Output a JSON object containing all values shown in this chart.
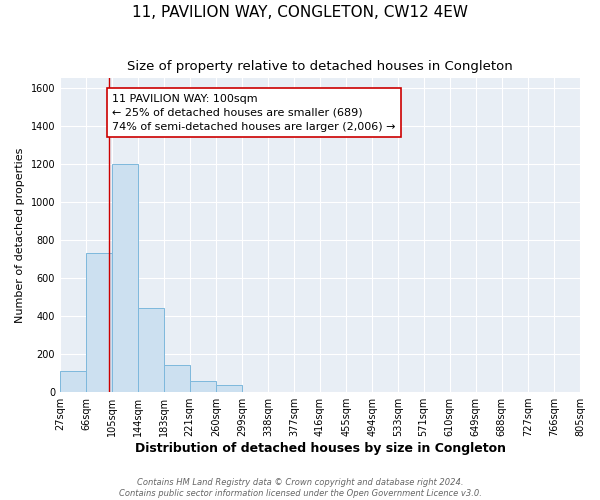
{
  "title": "11, PAVILION WAY, CONGLETON, CW12 4EW",
  "subtitle": "Size of property relative to detached houses in Congleton",
  "xlabel": "Distribution of detached houses by size in Congleton",
  "ylabel": "Number of detached properties",
  "bin_edges": [
    27,
    66,
    105,
    144,
    183,
    221,
    260,
    299,
    338,
    377,
    416,
    455,
    494,
    533,
    571,
    610,
    649,
    688,
    727,
    766,
    805
  ],
  "bin_heights": [
    110,
    730,
    1200,
    440,
    145,
    60,
    35,
    0,
    0,
    0,
    0,
    0,
    0,
    0,
    0,
    0,
    0,
    0,
    0,
    0
  ],
  "bar_color": "#cce0f0",
  "bar_edge_color": "#7db8dc",
  "property_line_x": 100,
  "property_line_color": "#cc0000",
  "annotation_line1": "11 PAVILION WAY: 100sqm",
  "annotation_line2": "← 25% of detached houses are smaller (689)",
  "annotation_line3": "74% of semi-detached houses are larger (2,006) →",
  "annotation_box_color": "#ffffff",
  "annotation_box_edge_color": "#cc0000",
  "ylim": [
    0,
    1650
  ],
  "yticks": [
    0,
    200,
    400,
    600,
    800,
    1000,
    1200,
    1400,
    1600
  ],
  "tick_labels": [
    "27sqm",
    "66sqm",
    "105sqm",
    "144sqm",
    "183sqm",
    "221sqm",
    "260sqm",
    "299sqm",
    "338sqm",
    "377sqm",
    "416sqm",
    "455sqm",
    "494sqm",
    "533sqm",
    "571sqm",
    "610sqm",
    "649sqm",
    "688sqm",
    "727sqm",
    "766sqm",
    "805sqm"
  ],
  "footer_text": "Contains HM Land Registry data © Crown copyright and database right 2024.\nContains public sector information licensed under the Open Government Licence v3.0.",
  "background_color": "#e8eef5",
  "grid_color": "#ffffff",
  "fig_background": "#ffffff",
  "title_fontsize": 11,
  "subtitle_fontsize": 9.5,
  "xlabel_fontsize": 9,
  "ylabel_fontsize": 8,
  "tick_fontsize": 7,
  "annotation_fontsize": 8,
  "footer_fontsize": 6
}
